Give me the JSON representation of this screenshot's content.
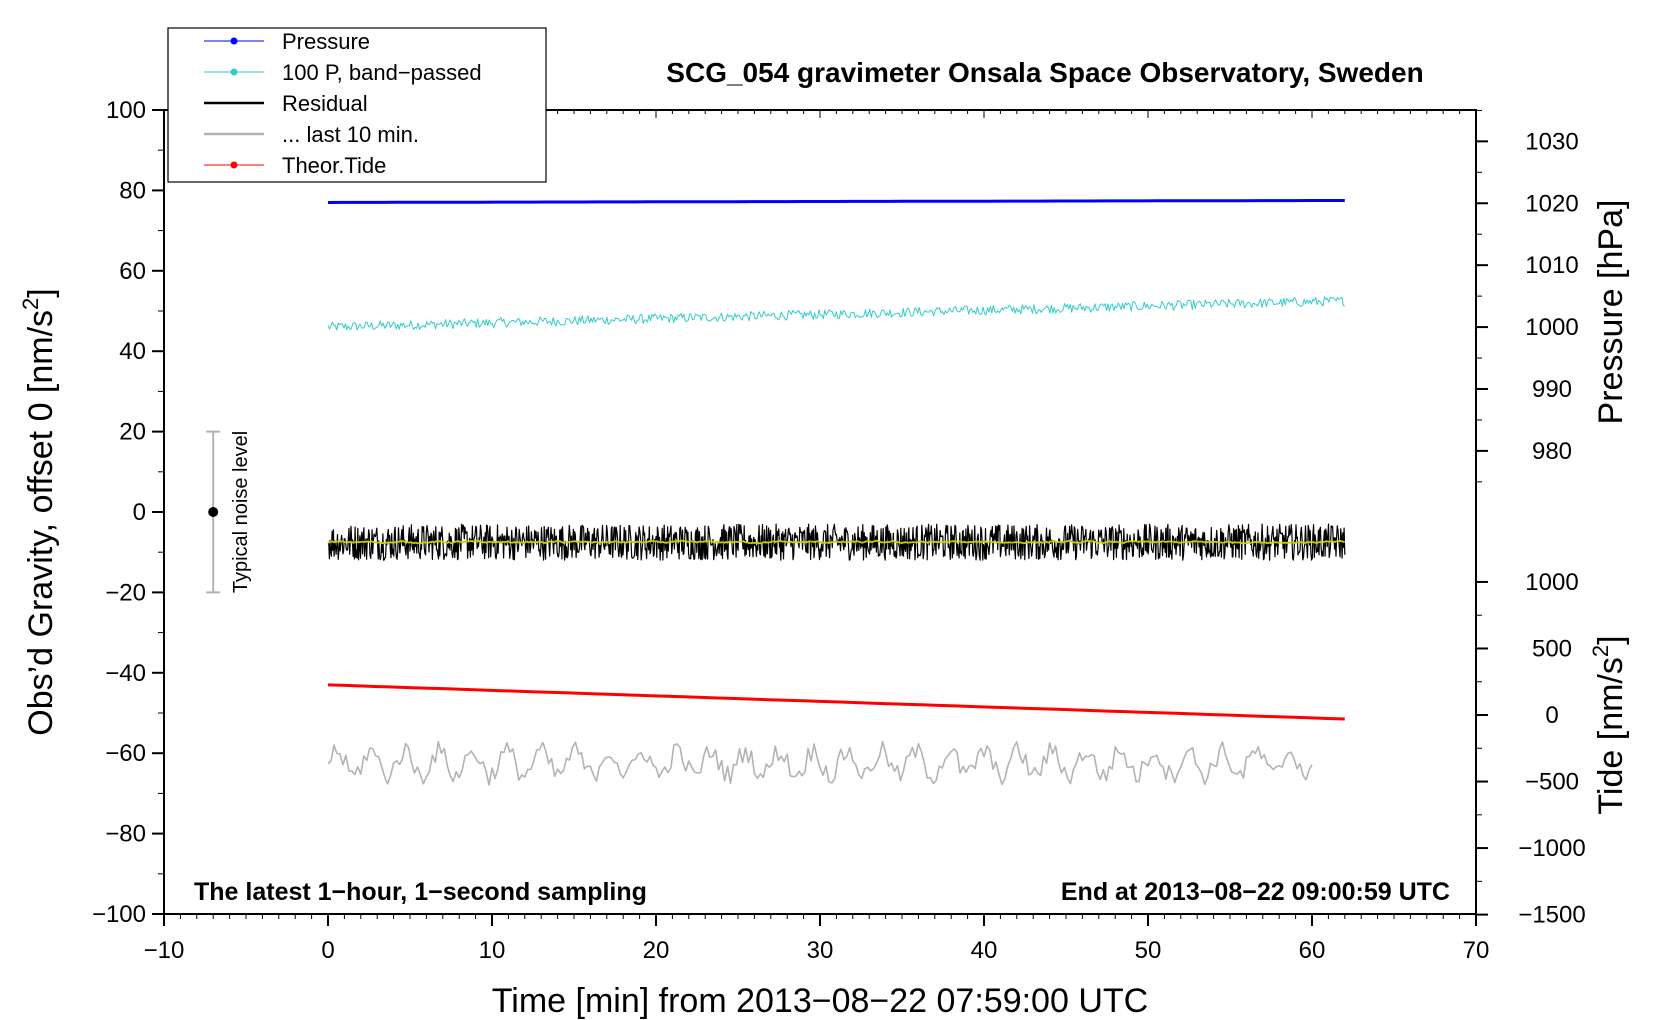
{
  "chart_data": {
    "type": "line",
    "title": "SCG_054 gravimeter Onsala Space Observatory, Sweden",
    "xlabel": "Time [min] from 2013−08−22 07:59:00 UTC",
    "ylabel_left": "Obs’d Gravity, offset 0 [nm/s",
    "ylabel_left_sup": "2",
    "ylabel_left_close": "]",
    "ylabel_right_pressure": "Pressure [hPa]",
    "ylabel_right_tide": "Tide [nm/s",
    "ylabel_right_tide_sup": "2",
    "ylabel_right_tide_close": "]",
    "xlim": [
      -10,
      70
    ],
    "ylim": [
      -100,
      100
    ],
    "x_ticks": [
      -10,
      0,
      10,
      20,
      30,
      40,
      50,
      60,
      70
    ],
    "x_tick_labels": [
      "−10",
      "0",
      "10",
      "20",
      "30",
      "40",
      "50",
      "60",
      "70"
    ],
    "y_ticks": [
      -100,
      -80,
      -60,
      -40,
      -20,
      0,
      20,
      40,
      60,
      80,
      100
    ],
    "y_tick_labels": [
      "−100",
      "−80",
      "−60",
      "−40",
      "−20",
      "0",
      "20",
      "40",
      "60",
      "80",
      "100"
    ],
    "pressure_axis": {
      "ticks": [
        980,
        990,
        1000,
        1010,
        1020,
        1030
      ],
      "tick_labels": [
        "980",
        "990",
        "1000",
        "1010",
        "1020",
        "1030"
      ],
      "gravity_at_1000": 46,
      "gravity_per_hPa": 1.54
    },
    "tide_axis": {
      "ticks": [
        -1500,
        -1000,
        -500,
        0,
        500,
        1000
      ],
      "tick_labels": [
        "−1500",
        "−1000",
        "−500",
        "0",
        "500",
        "1000"
      ],
      "gravity_at_0": -50.5,
      "gravity_per_unit": 0.0331
    },
    "series": [
      {
        "name": "Pressure",
        "color": "#0000ff",
        "x_start": 0,
        "x_end": 62,
        "y_start": 77.0,
        "y_end": 77.5,
        "noise": 0
      },
      {
        "name": "100 P, band−passed",
        "color": "#33cccc",
        "x_start": 0,
        "x_end": 62,
        "y_start": 46.0,
        "y_end": 52.5,
        "noise": 1.2
      },
      {
        "name": "Residual",
        "color": "#000000",
        "x_start": 0,
        "x_end": 62,
        "y_start": -7.5,
        "y_end": -7.5,
        "noise": 4.5
      },
      {
        "name": "Residual smoothed",
        "color": "#cccc00",
        "x_start": 0,
        "x_end": 62,
        "y_start": -7.5,
        "y_end": -7.5,
        "noise": 0.6
      },
      {
        "name": "... last 10 min.",
        "color": "#b3b3b3",
        "x_start": 0,
        "x_end": 60,
        "y_start": -62.5,
        "y_end": -62.5,
        "noise": 5.5
      },
      {
        "name": "Theor.Tide",
        "color": "#ff0000",
        "x_start": 0,
        "x_end": 62,
        "y_start": -43.0,
        "y_end": -51.5,
        "noise": 0
      }
    ],
    "noise_bar": {
      "x": -7,
      "y": 0,
      "y_low": -20,
      "y_high": 20,
      "label": "Typical noise level"
    },
    "annotations": {
      "left": "The latest 1−hour, 1−second sampling",
      "right": "End at 2013−08−22 09:00:59 UTC"
    },
    "legend": {
      "placement": "top-left",
      "entries": [
        {
          "label": "Pressure",
          "color": "#0000ff",
          "marker": true
        },
        {
          "label": "100 P, band−passed",
          "color": "#33cccc",
          "marker": true
        },
        {
          "label": "Residual",
          "color": "#000000",
          "marker": false
        },
        {
          "label": "... last 10 min.",
          "color": "#b3b3b3",
          "marker": false
        },
        {
          "label": "Theor.Tide",
          "color": "#ff0000",
          "marker": true
        }
      ]
    }
  }
}
